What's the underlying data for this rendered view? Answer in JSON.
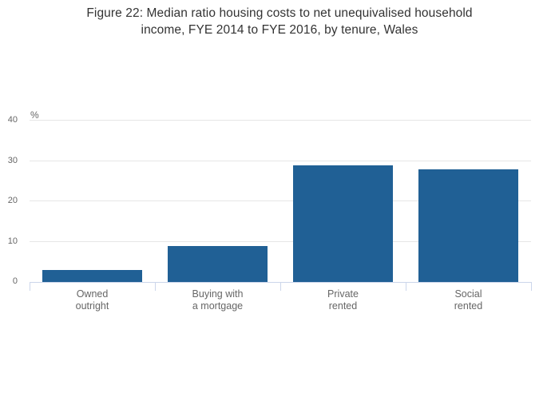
{
  "chart_data": {
    "type": "bar",
    "title": "Figure 22: Median ratio housing costs to net unequivalised household income, FYE 2014 to FYE 2016, by tenure, Wales",
    "title_lines": [
      "Figure 22: Median ratio housing costs to net unequivalised household",
      "income, FYE 2014 to FYE 2016, by tenure, Wales"
    ],
    "categories": [
      "Owned outright",
      "Buying with a mortgage",
      "Private rented",
      "Social rented"
    ],
    "category_label_lines": [
      [
        "Owned",
        "outright"
      ],
      [
        "Buying with",
        "a mortgage"
      ],
      [
        "Private",
        "rented"
      ],
      [
        "Social",
        "rented"
      ]
    ],
    "values": [
      3,
      9,
      29,
      28
    ],
    "xlabel": "",
    "ylabel": "%",
    "ylim": [
      0,
      40
    ],
    "yticks": [
      0,
      10,
      20,
      30,
      40
    ],
    "grid": true,
    "legend": false
  },
  "colors": {
    "bar": "#206095",
    "gridline": "#e6e6e6",
    "axis_line": "#ccd6eb",
    "tick_label_text": "#666666",
    "title_text": "#333333",
    "background": "#ffffff"
  }
}
